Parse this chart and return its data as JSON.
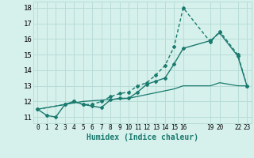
{
  "xlabel": "Humidex (Indice chaleur)",
  "bg_color": "#d6f0ec",
  "grid_color": "#b8ddd8",
  "line_color": "#1a7a6e",
  "ylim": [
    10.6,
    18.4
  ],
  "xlim": [
    -0.5,
    23.5
  ],
  "yticks": [
    11,
    12,
    13,
    14,
    15,
    16,
    17,
    18
  ],
  "xtick_positions": [
    0,
    1,
    2,
    3,
    4,
    5,
    6,
    7,
    8,
    9,
    10,
    11,
    12,
    13,
    14,
    15,
    16,
    19,
    20,
    22,
    23
  ],
  "xtick_labels": [
    "0",
    "1",
    "2",
    "3",
    "4",
    "5",
    "6",
    "7",
    "8",
    "9",
    "10",
    "11",
    "12",
    "13",
    "14",
    "15",
    "16",
    "19",
    "20",
    "22",
    "23"
  ],
  "line1_x": [
    0,
    1,
    2,
    3,
    4,
    5,
    6,
    7,
    8,
    9,
    10,
    11,
    12,
    13,
    14,
    15,
    16,
    19,
    20,
    22,
    23
  ],
  "line1_y": [
    11.5,
    11.1,
    11.0,
    11.8,
    12.0,
    11.8,
    11.7,
    11.6,
    12.1,
    12.2,
    12.2,
    12.6,
    13.1,
    13.3,
    13.5,
    14.4,
    15.4,
    15.9,
    16.4,
    14.9,
    13.0
  ],
  "line2_x": [
    0,
    3,
    4,
    5,
    6,
    7,
    8,
    9,
    10,
    11,
    12,
    13,
    14,
    15,
    16,
    19,
    20,
    22,
    23
  ],
  "line2_y": [
    11.5,
    11.8,
    12.0,
    11.8,
    11.8,
    12.0,
    12.3,
    12.5,
    12.6,
    13.0,
    13.2,
    13.7,
    14.3,
    15.5,
    18.0,
    15.8,
    16.5,
    15.0,
    13.0
  ],
  "line3_x": [
    0,
    5,
    10,
    15,
    16,
    19,
    20,
    22,
    23
  ],
  "line3_y": [
    11.5,
    12.0,
    12.2,
    12.8,
    13.0,
    13.0,
    13.2,
    13.0,
    13.0
  ]
}
